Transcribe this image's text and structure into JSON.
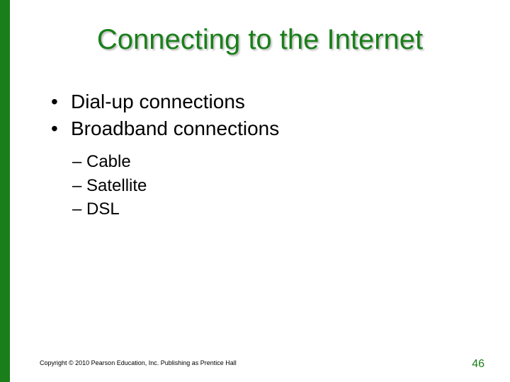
{
  "colors": {
    "accent": "#1a7f1a",
    "title": "#1a7f1a",
    "body": "#000000",
    "pagenum": "#1a7f1a",
    "background": "#ffffff"
  },
  "slide": {
    "title": "Connecting to the Internet",
    "bullets_level1": [
      "Dial-up connections",
      "Broadband connections"
    ],
    "bullets_level2": [
      "Cable",
      "Satellite",
      "DSL"
    ],
    "footer_copyright": "Copyright © 2010 Pearson Education, Inc. Publishing as Prentice Hall",
    "page_number": "46"
  },
  "bullet_glyphs": {
    "level1": "•",
    "level2": "–"
  }
}
